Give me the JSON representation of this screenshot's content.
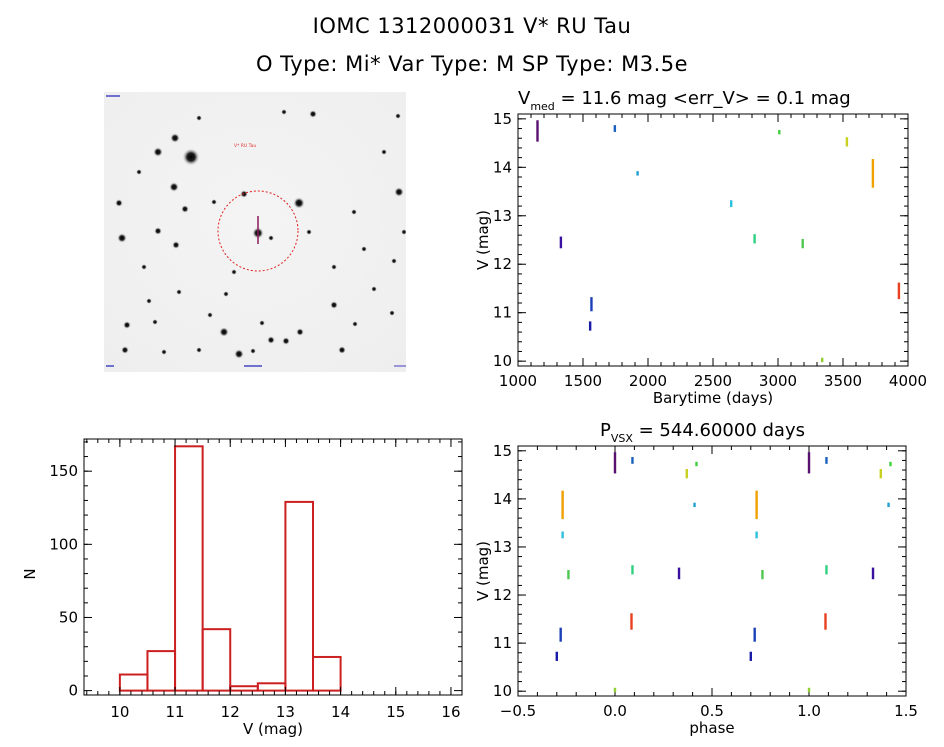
{
  "header": {
    "title_line1": "IOMC 1312000031    V* RU Tau",
    "title_line2": "O Type: Mi*  Var Type: M   SP Type: M3.5e"
  },
  "image_panel": {
    "star_label": "V* RU Tau",
    "colors": {
      "circle": "#e02020",
      "cross": "#8a1a5a",
      "label": "#e03030",
      "corner_text": "#3030c0"
    }
  },
  "lc_panel": {
    "title_main": "V",
    "title_sub": "med",
    "title_rest": " = 11.6 mag <err_V> = 0.1 mag"
  },
  "phase_panel": {
    "title_main": "P",
    "title_sub": "VSX",
    "title_rest": " = 544.60000 days"
  },
  "chart_data": [
    {
      "type": "scatter",
      "name": "lightcurve",
      "xlabel": "Barytime (days)",
      "ylabel": "V (mag)",
      "xlim": [
        1000,
        4000
      ],
      "ylim": [
        15.1,
        9.9
      ],
      "xticks": [
        1000,
        1500,
        2000,
        2500,
        3000,
        3500,
        4000
      ],
      "yticks": [
        10,
        11,
        12,
        13,
        14,
        15
      ],
      "points": [
        {
          "x": 1150,
          "y": 14.55,
          "y2": 14.95,
          "color": "#5a1070"
        },
        {
          "x": 1330,
          "y": 12.35,
          "y2": 12.55,
          "color": "#3a10a0"
        },
        {
          "x": 1555,
          "y": 10.65,
          "y2": 10.8,
          "color": "#1a1aa8"
        },
        {
          "x": 1565,
          "y": 11.05,
          "y2": 11.3,
          "color": "#1a40b8"
        },
        {
          "x": 1745,
          "y": 14.75,
          "y2": 14.85,
          "color": "#1a60c0"
        },
        {
          "x": 1920,
          "y": 13.85,
          "y2": 13.9,
          "color": "#20a0d0"
        },
        {
          "x": 2640,
          "y": 13.2,
          "y2": 13.3,
          "color": "#30c0e0"
        },
        {
          "x": 2820,
          "y": 12.45,
          "y2": 12.6,
          "color": "#30d080"
        },
        {
          "x": 3010,
          "y": 14.7,
          "y2": 14.75,
          "color": "#40d040"
        },
        {
          "x": 3190,
          "y": 12.35,
          "y2": 12.5,
          "color": "#50c850"
        },
        {
          "x": 3340,
          "y": 10.0,
          "y2": 10.05,
          "color": "#90d030"
        },
        {
          "x": 3530,
          "y": 14.45,
          "y2": 14.6,
          "color": "#c8d020"
        },
        {
          "x": 3730,
          "y": 13.6,
          "y2": 14.15,
          "color": "#f0a000"
        },
        {
          "x": 3930,
          "y": 11.3,
          "y2": 11.6,
          "color": "#e84020"
        }
      ]
    },
    {
      "type": "scatter",
      "name": "phased",
      "xlabel": "phase",
      "ylabel": "V (mag)",
      "xlim": [
        -0.5,
        1.5
      ],
      "ylim": [
        15.1,
        9.9
      ],
      "xticks": [
        -0.5,
        0.0,
        0.5,
        1.0,
        1.5
      ],
      "xticklabels": [
        "−0.5",
        "0.0",
        "0.5",
        "1.0",
        "1.5"
      ],
      "yticks": [
        10,
        11,
        12,
        13,
        14,
        15
      ],
      "points": [
        {
          "x": -0.27,
          "y": 13.6,
          "y2": 14.15,
          "color": "#f0a000"
        },
        {
          "x": -0.27,
          "y": 13.2,
          "y2": 13.3,
          "color": "#30c0e0"
        },
        {
          "x": -0.24,
          "y": 12.35,
          "y2": 12.5,
          "color": "#50c850"
        },
        {
          "x": 0.085,
          "y": 11.3,
          "y2": 11.6,
          "color": "#e84020"
        },
        {
          "x": 0.0,
          "y": 10.0,
          "y2": 10.05,
          "color": "#90d030"
        },
        {
          "x": 0.09,
          "y": 12.45,
          "y2": 12.6,
          "color": "#30d080"
        },
        {
          "x": 0.0,
          "y": 14.55,
          "y2": 14.95,
          "color": "#5a1070"
        },
        {
          "x": 0.09,
          "y": 14.75,
          "y2": 14.85,
          "color": "#1a60c0"
        },
        {
          "x": -0.3,
          "y": 10.65,
          "y2": 10.8,
          "color": "#1a1aa8"
        },
        {
          "x": -0.28,
          "y": 11.05,
          "y2": 11.3,
          "color": "#1a40b8"
        },
        {
          "x": 0.33,
          "y": 12.35,
          "y2": 12.55,
          "color": "#3a10a0"
        },
        {
          "x": 0.37,
          "y": 14.45,
          "y2": 14.6,
          "color": "#c8d020"
        },
        {
          "x": 0.41,
          "y": 13.85,
          "y2": 13.9,
          "color": "#20a0d0"
        },
        {
          "x": 0.42,
          "y": 14.7,
          "y2": 14.75,
          "color": "#40d040"
        },
        {
          "x": 0.73,
          "y": 13.6,
          "y2": 14.15,
          "color": "#f0a000"
        },
        {
          "x": 0.73,
          "y": 13.2,
          "y2": 13.3,
          "color": "#30c0e0"
        },
        {
          "x": 0.76,
          "y": 12.35,
          "y2": 12.5,
          "color": "#50c850"
        },
        {
          "x": 1.085,
          "y": 11.3,
          "y2": 11.6,
          "color": "#e84020"
        },
        {
          "x": 1.0,
          "y": 10.0,
          "y2": 10.05,
          "color": "#90d030"
        },
        {
          "x": 1.09,
          "y": 12.45,
          "y2": 12.6,
          "color": "#30d080"
        },
        {
          "x": 1.0,
          "y": 14.55,
          "y2": 14.95,
          "color": "#5a1070"
        },
        {
          "x": 1.09,
          "y": 14.75,
          "y2": 14.85,
          "color": "#1a60c0"
        },
        {
          "x": 0.7,
          "y": 10.65,
          "y2": 10.8,
          "color": "#1a1aa8"
        },
        {
          "x": 0.72,
          "y": 11.05,
          "y2": 11.3,
          "color": "#1a40b8"
        },
        {
          "x": 1.33,
          "y": 12.35,
          "y2": 12.55,
          "color": "#3a10a0"
        },
        {
          "x": 1.37,
          "y": 14.45,
          "y2": 14.6,
          "color": "#c8d020"
        },
        {
          "x": 1.41,
          "y": 13.85,
          "y2": 13.9,
          "color": "#20a0d0"
        },
        {
          "x": 1.42,
          "y": 14.7,
          "y2": 14.75,
          "color": "#40d040"
        }
      ]
    },
    {
      "type": "bar",
      "name": "histogram",
      "xlabel": "V (mag)",
      "ylabel": "N",
      "xlim": [
        9.35,
        16.2
      ],
      "ylim": [
        -3,
        172
      ],
      "xticks": [
        10,
        11,
        12,
        13,
        14,
        15,
        16
      ],
      "yticks": [
        0,
        50,
        100,
        150
      ],
      "bar_color": "#cc2020",
      "bins": [
        {
          "x0": 10.0,
          "x1": 10.5,
          "value": 11
        },
        {
          "x0": 10.5,
          "x1": 11.0,
          "value": 27
        },
        {
          "x0": 11.0,
          "x1": 11.5,
          "value": 167
        },
        {
          "x0": 11.5,
          "x1": 12.0,
          "value": 42
        },
        {
          "x0": 12.0,
          "x1": 12.5,
          "value": 3
        },
        {
          "x0": 12.5,
          "x1": 13.0,
          "value": 5
        },
        {
          "x0": 13.0,
          "x1": 13.5,
          "value": 129
        },
        {
          "x0": 13.5,
          "x1": 14.0,
          "value": 23
        }
      ]
    }
  ]
}
